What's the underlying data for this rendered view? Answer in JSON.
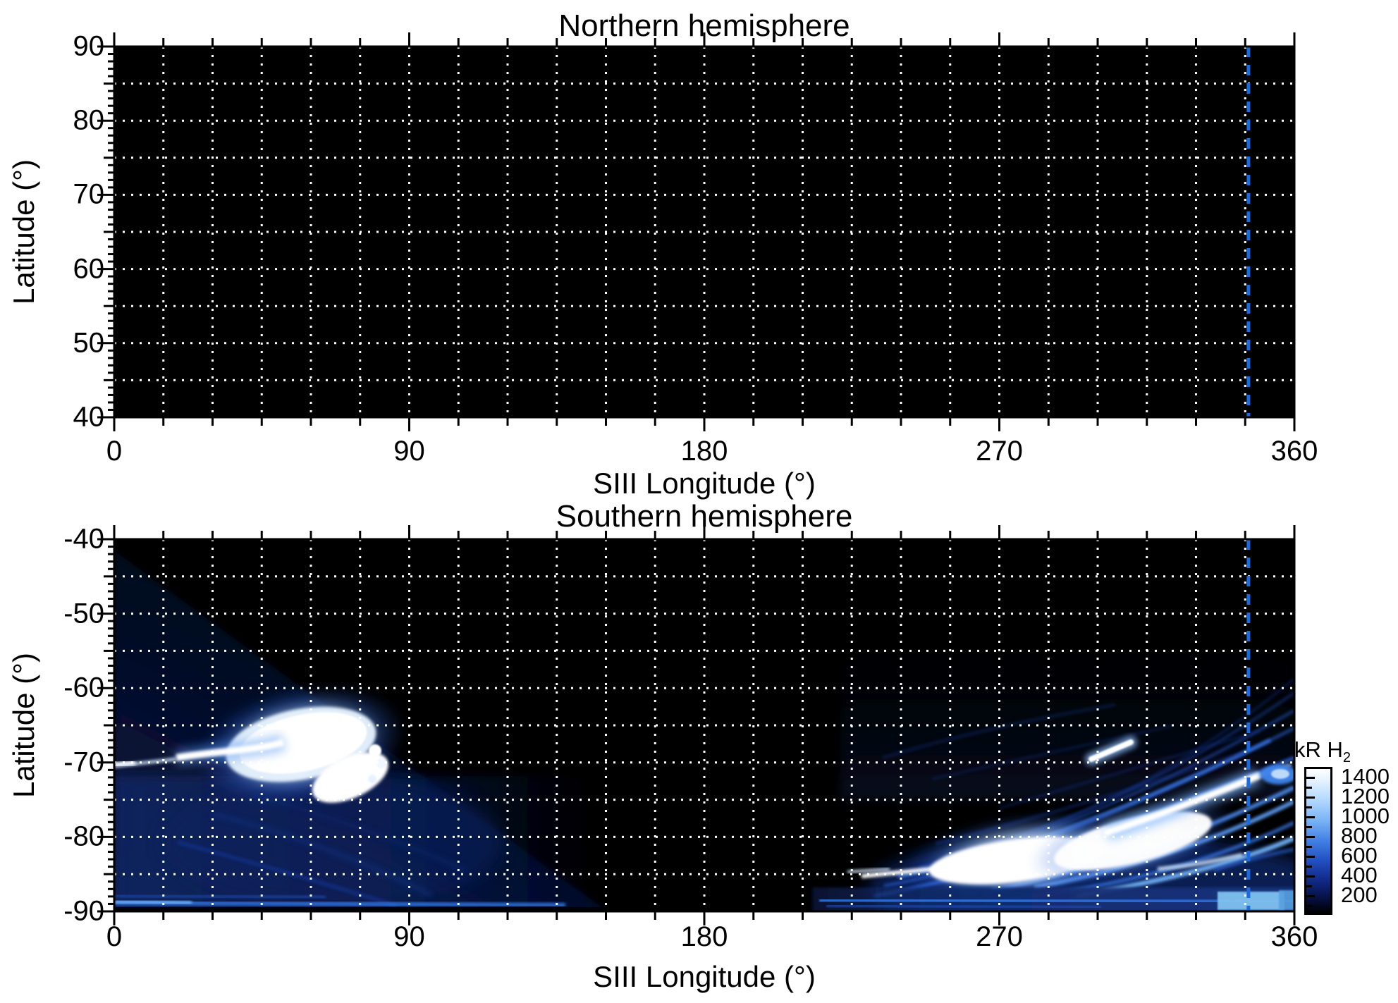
{
  "figure": {
    "background": "#ffffff"
  },
  "panels": [
    {
      "id": "north",
      "title": "Northern hemisphere",
      "xlabel": "SIII Longitude (°)",
      "ylabel": "Latitude (°)",
      "x_ticks": [
        {
          "value": 0,
          "label": "0"
        },
        {
          "value": 90,
          "label": "90"
        },
        {
          "value": 180,
          "label": "180"
        },
        {
          "value": 270,
          "label": "270"
        },
        {
          "value": 360,
          "label": "360"
        }
      ],
      "y_ticks": [
        {
          "value": 90,
          "label": "90"
        },
        {
          "value": 80,
          "label": "80"
        },
        {
          "value": 70,
          "label": "70"
        },
        {
          "value": 60,
          "label": "60"
        },
        {
          "value": 50,
          "label": "50"
        },
        {
          "value": 40,
          "label": "40"
        }
      ]
    },
    {
      "id": "south",
      "title": "Southern hemisphere",
      "xlabel": "SIII Longitude (°)",
      "ylabel": "Latitude (°)",
      "x_ticks": [
        {
          "value": 0,
          "label": "0"
        },
        {
          "value": 90,
          "label": "90"
        },
        {
          "value": 180,
          "label": "180"
        },
        {
          "value": 270,
          "label": "270"
        },
        {
          "value": 360,
          "label": "360"
        }
      ],
      "y_ticks": [
        {
          "value": -40,
          "label": "-40"
        },
        {
          "value": -50,
          "label": "-50"
        },
        {
          "value": -60,
          "label": "-60"
        },
        {
          "value": -70,
          "label": "-70"
        },
        {
          "value": -80,
          "label": "-80"
        },
        {
          "value": -90,
          "label": "-90"
        }
      ]
    }
  ],
  "colorbar": {
    "title": "kR H",
    "title_subscript": "2",
    "range": [
      0,
      1500
    ],
    "ticks": [
      {
        "value": 1400,
        "label": "1400"
      },
      {
        "value": 1200,
        "label": "1200"
      },
      {
        "value": 1000,
        "label": "1000"
      },
      {
        "value": 800,
        "label": "800"
      },
      {
        "value": 600,
        "label": "600"
      },
      {
        "value": 400,
        "label": "400"
      },
      {
        "value": 200,
        "label": "200"
      }
    ],
    "minor_step": 100
  },
  "reference_line": {
    "longitude_deg": 346,
    "color": "#1b6ae0",
    "style": "dashed"
  },
  "grid": {
    "lon_step_deg": 15,
    "lat_step_deg": 5,
    "color": "#ffffff",
    "style": "dotted"
  },
  "chart_data": {
    "type": "heatmap",
    "quantity": "H2 auroral emission brightness map in planetocentric coordinates",
    "units": "kR",
    "xlabel": "SIII Longitude (°)",
    "ylabel": "Latitude (°)",
    "x_range": [
      0,
      360
    ],
    "x_major_ticks": [
      0,
      90,
      180,
      270,
      360
    ],
    "grid": {
      "lon_step_deg": 15,
      "lat_step_deg": 5,
      "style": "white dotted"
    },
    "reference_longitude_deg": 346,
    "colorbar": {
      "label": "kR H2",
      "value_range": [
        0,
        1500
      ],
      "tick_values": [
        200,
        400,
        600,
        800,
        1000,
        1200,
        1400
      ]
    },
    "panels": [
      {
        "title": "Northern hemisphere",
        "lat_range": [
          40,
          90
        ],
        "lat_major_ticks": [
          90,
          80,
          70,
          60,
          50,
          40
        ],
        "content": "entirely black: no emission / no coverage"
      },
      {
        "title": "Southern hemisphere",
        "lat_range": [
          -90,
          -40
        ],
        "lat_major_ticks": [
          -40,
          -50,
          -60,
          -70,
          -80,
          -90
        ],
        "features": [
          {
            "name": "observed swath wedge",
            "description": "very dark blue background noise below a diagonal boundary running from (lon 0, lat -41) to (lon 150, lat -90)"
          },
          {
            "name": "main auroral spot",
            "lon_range": [
              38,
              85
            ],
            "lat_range": [
              -74,
              -62
            ],
            "brightness": "saturated white, >1500 kR, with blue halo"
          },
          {
            "name": "westward tail of main spot",
            "lon_range": [
              18,
              40
            ],
            "lat": -68,
            "brightness": "white to bright blue"
          },
          {
            "name": "arc fragment at left edge",
            "lon_range": [
              0,
              20
            ],
            "lat": -70.5,
            "brightness": "bright blue-white"
          },
          {
            "name": "diffuse ringing arcs below main spot",
            "lon_range": [
              20,
              105
            ],
            "lat_range": [
              -88,
              -75
            ],
            "brightness": "faint blue"
          },
          {
            "name": "large auroral fan of arcs",
            "lon_range": [
              215,
              360
            ],
            "lat_range": [
              -90,
              -62
            ],
            "brightness": "many blue arcs sweeping up toward higher longitude with saturated white core near lon 240-315, lat -87..-77"
          },
          {
            "name": "bright diagonal arc",
            "from": [
              303,
              -79
            ],
            "to": [
              348,
              -72
            ],
            "brightness": "saturated white"
          },
          {
            "name": "isolated bright streak",
            "lon_range": [
              298,
              310
            ],
            "lat": -68.5,
            "brightness": "white"
          },
          {
            "name": "bright spot at right edge",
            "lon_range": [
              352,
              358
            ],
            "lat": -71.7,
            "brightness": "bright blue"
          },
          {
            "name": "polar cap band",
            "lat_range": [
              -90,
              -87.5
            ],
            "lon_ranges": [
              [
                0,
                150
              ],
              [
                212,
                360
              ]
            ],
            "brightness": "blue band with lighter cyan segment near lon 337-354"
          }
        ]
      }
    ]
  }
}
